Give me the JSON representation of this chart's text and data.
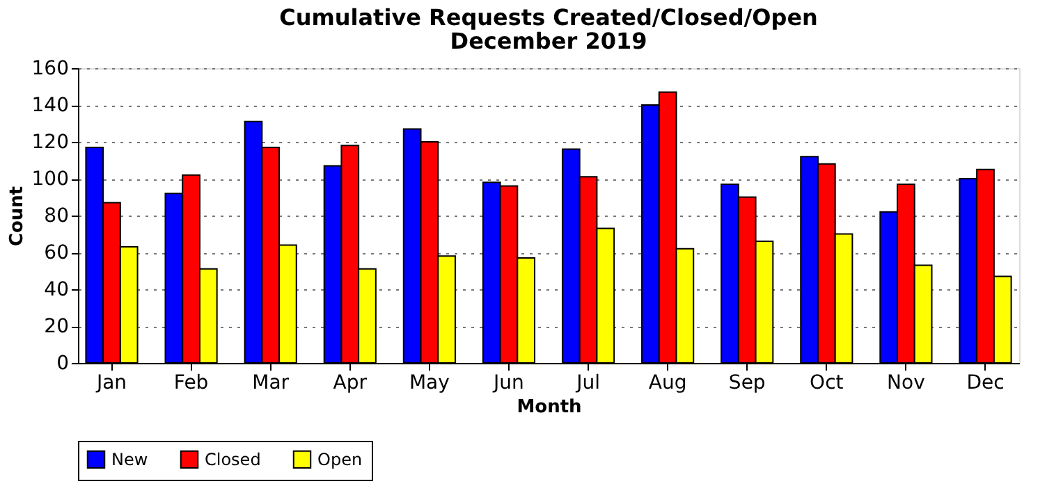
{
  "chart_data": {
    "type": "bar",
    "title": "Cumulative Requests Created/Closed/Open",
    "subtitle": "December 2019",
    "xlabel": "Month",
    "ylabel": "Count",
    "categories": [
      "Jan",
      "Feb",
      "Mar",
      "Apr",
      "May",
      "Jun",
      "Jul",
      "Aug",
      "Sep",
      "Oct",
      "Nov",
      "Dec"
    ],
    "series": [
      {
        "name": "New",
        "color": "#0000ff",
        "values": [
          117,
          92,
          131,
          107,
          127,
          98,
          116,
          140,
          97,
          112,
          82,
          100
        ]
      },
      {
        "name": "Closed",
        "color": "#ff0000",
        "values": [
          87,
          102,
          117,
          118,
          120,
          96,
          101,
          147,
          90,
          108,
          97,
          105
        ]
      },
      {
        "name": "Open",
        "color": "#ffff00",
        "values": [
          63,
          51,
          64,
          51,
          58,
          57,
          73,
          62,
          66,
          70,
          53,
          47
        ]
      }
    ],
    "ylim": [
      0,
      160
    ],
    "yticks": [
      0,
      20,
      40,
      60,
      80,
      100,
      120,
      140,
      160
    ],
    "grid": "y",
    "legend": "bottom"
  }
}
